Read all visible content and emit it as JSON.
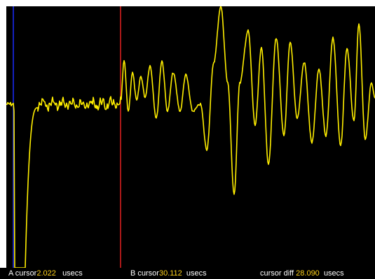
{
  "colors": {
    "plot_background": "#000000",
    "trace": "#ffee00",
    "cursor_a": "#1a2cff",
    "cursor_b": "#e02020",
    "label_text": "#ffffff",
    "value_text": "#ffd21a"
  },
  "cursors": {
    "a": {
      "label": "A cursor",
      "value": "2.022",
      "unit": "usecs"
    },
    "b": {
      "label": "B cursor",
      "value": "30.112",
      "unit": "usecs"
    },
    "diff": {
      "label": "cursor diff",
      "value": "28.090",
      "unit": "usecs"
    }
  }
}
